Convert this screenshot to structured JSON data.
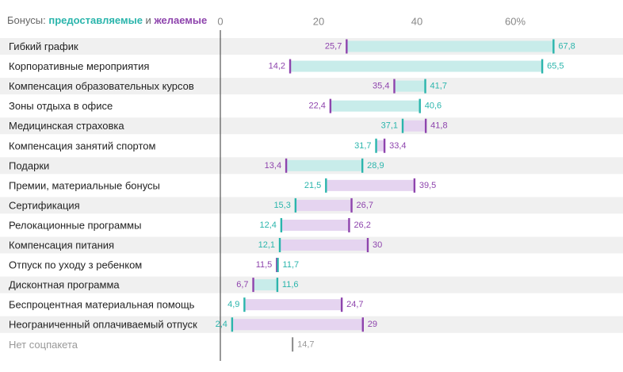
{
  "legend": {
    "prefix": "Бонусы:",
    "provided_label": "предоставляемые",
    "joiner": "и",
    "desired_label": "желаемые"
  },
  "colors": {
    "provided": "#2bb5ac",
    "provided_fill": "#c8ecea",
    "desired": "#8e44ad",
    "desired_fill": "#e5d4f0",
    "row_band": "#f0f0f0",
    "axis": "#555555",
    "tick_text": "#888888",
    "label_text": "#222222",
    "muted_text": "#999999"
  },
  "chart_data": {
    "type": "dumbbell",
    "x_ticks": [
      "0",
      "20",
      "40",
      "60%"
    ],
    "x_tick_values": [
      0,
      20,
      40,
      60
    ],
    "xlim": [
      0,
      70
    ],
    "series": [
      {
        "name": "предоставляемые",
        "key": "provided"
      },
      {
        "name": "желаемые",
        "key": "desired"
      }
    ],
    "rows": [
      {
        "label": "Гибкий график",
        "desired": 25.7,
        "desired_text": "25,7",
        "provided": 67.8,
        "provided_text": "67,8"
      },
      {
        "label": "Корпоративные мероприятия",
        "desired": 14.2,
        "desired_text": "14,2",
        "provided": 65.5,
        "provided_text": "65,5"
      },
      {
        "label": "Компенсация образовательных курсов",
        "desired": 35.4,
        "desired_text": "35,4",
        "provided": 41.7,
        "provided_text": "41,7"
      },
      {
        "label": "Зоны отдыха в офисе",
        "desired": 22.4,
        "desired_text": "22,4",
        "provided": 40.6,
        "provided_text": "40,6"
      },
      {
        "label": "Медицинская страховка",
        "desired": 41.8,
        "desired_text": "41,8",
        "provided": 37.1,
        "provided_text": "37,1"
      },
      {
        "label": "Компенсация занятий спортом",
        "desired": 33.4,
        "desired_text": "33,4",
        "provided": 31.7,
        "provided_text": "31,7"
      },
      {
        "label": "Подарки",
        "desired": 13.4,
        "desired_text": "13,4",
        "provided": 28.9,
        "provided_text": "28,9"
      },
      {
        "label": "Премии, материальные бонусы",
        "desired": 39.5,
        "desired_text": "39,5",
        "provided": 21.5,
        "provided_text": "21,5"
      },
      {
        "label": "Сертификация",
        "desired": 26.7,
        "desired_text": "26,7",
        "provided": 15.3,
        "provided_text": "15,3"
      },
      {
        "label": "Релокационные программы",
        "desired": 26.2,
        "desired_text": "26,2",
        "provided": 12.4,
        "provided_text": "12,4"
      },
      {
        "label": "Компенсация питания",
        "desired": 30,
        "desired_text": "30",
        "provided": 12.1,
        "provided_text": "12,1"
      },
      {
        "label": "Отпуск по уходу з ребенком",
        "desired": 11.5,
        "desired_text": "11,5",
        "provided": 11.7,
        "provided_text": "11,7"
      },
      {
        "label": "Дисконтная программа",
        "desired": 6.7,
        "desired_text": "6,7",
        "provided": 11.6,
        "provided_text": "11,6"
      },
      {
        "label": "Беспроцентная материальная помощь",
        "desired": 24.7,
        "desired_text": "24,7",
        "provided": 4.9,
        "provided_text": "4,9"
      },
      {
        "label": "Неограниченный оплачиваемый отпуск",
        "desired": 29,
        "desired_text": "29",
        "provided": 2.4,
        "provided_text": "2,4"
      }
    ],
    "no_package": {
      "label": "Нет соцпакета",
      "value": 14.7,
      "value_text": "14,7"
    }
  }
}
